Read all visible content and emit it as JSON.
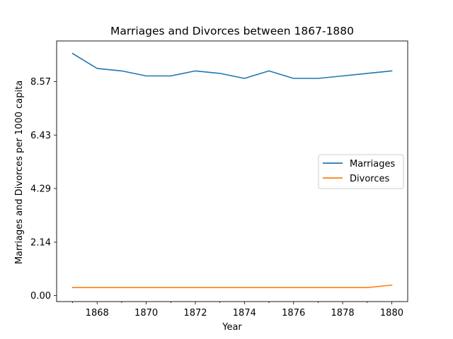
{
  "chart_data": {
    "type": "line",
    "title": "Marriages and Divorces between 1867-1880",
    "xlabel": "Year",
    "ylabel": "Marriages and Divorces per 1000 capita",
    "x": [
      1867,
      1868,
      1869,
      1870,
      1871,
      1872,
      1873,
      1874,
      1875,
      1876,
      1877,
      1878,
      1879,
      1880
    ],
    "x_ticks": [
      1868,
      1870,
      1872,
      1874,
      1876,
      1878,
      1880
    ],
    "y_ticks": [
      "0.00",
      "2.14",
      "4.29",
      "6.43",
      "8.57"
    ],
    "xlim": [
      1866.35,
      1880.65
    ],
    "ylim": [
      -0.24,
      10.2
    ],
    "grid": false,
    "legend_position": "center-right",
    "series": [
      {
        "name": "Marriages",
        "color": "#1f77b4",
        "values": [
          9.7,
          9.1,
          9.0,
          8.8,
          8.8,
          9.0,
          8.9,
          8.7,
          9.0,
          8.7,
          8.7,
          8.8,
          8.9,
          9.0
        ]
      },
      {
        "name": "Divorces",
        "color": "#ff7f0e",
        "values": [
          0.32,
          0.32,
          0.32,
          0.32,
          0.32,
          0.32,
          0.32,
          0.32,
          0.32,
          0.32,
          0.32,
          0.32,
          0.32,
          0.42
        ]
      }
    ]
  }
}
